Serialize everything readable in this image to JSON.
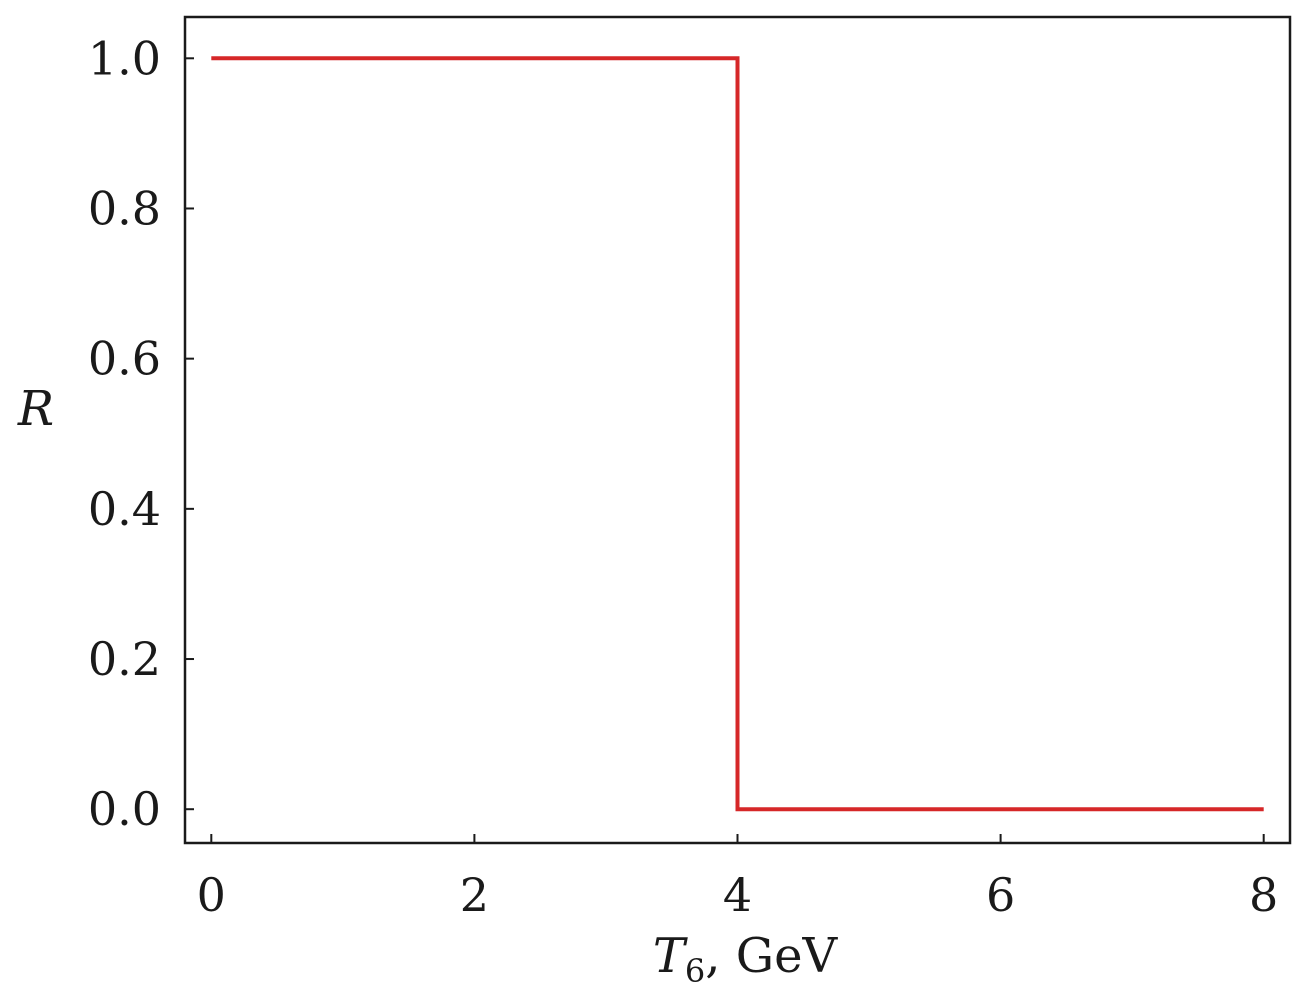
{
  "chart_data": {
    "type": "line",
    "title": "",
    "xlabel": {
      "symbol": "T",
      "subscript": "6",
      "rest": ", GeV"
    },
    "ylabel": "R",
    "xlim": [
      -0.2,
      8.2
    ],
    "ylim": [
      -0.045,
      1.055
    ],
    "xticks": [
      0,
      2,
      4,
      6,
      8
    ],
    "xtick_labels": [
      "0",
      "2",
      "4",
      "6",
      "8"
    ],
    "yticks": [
      0.0,
      0.2,
      0.4,
      0.6,
      0.8,
      1.0
    ],
    "ytick_labels": [
      "0.0",
      "0.2",
      "0.4",
      "0.6",
      "0.8",
      "1.0"
    ],
    "grid": false,
    "legend": "none",
    "series": [
      {
        "color": "#d62728",
        "points": [
          [
            0,
            1.0
          ],
          [
            4,
            1.0
          ],
          [
            4,
            0.0
          ],
          [
            8,
            0.0
          ]
        ]
      }
    ]
  }
}
